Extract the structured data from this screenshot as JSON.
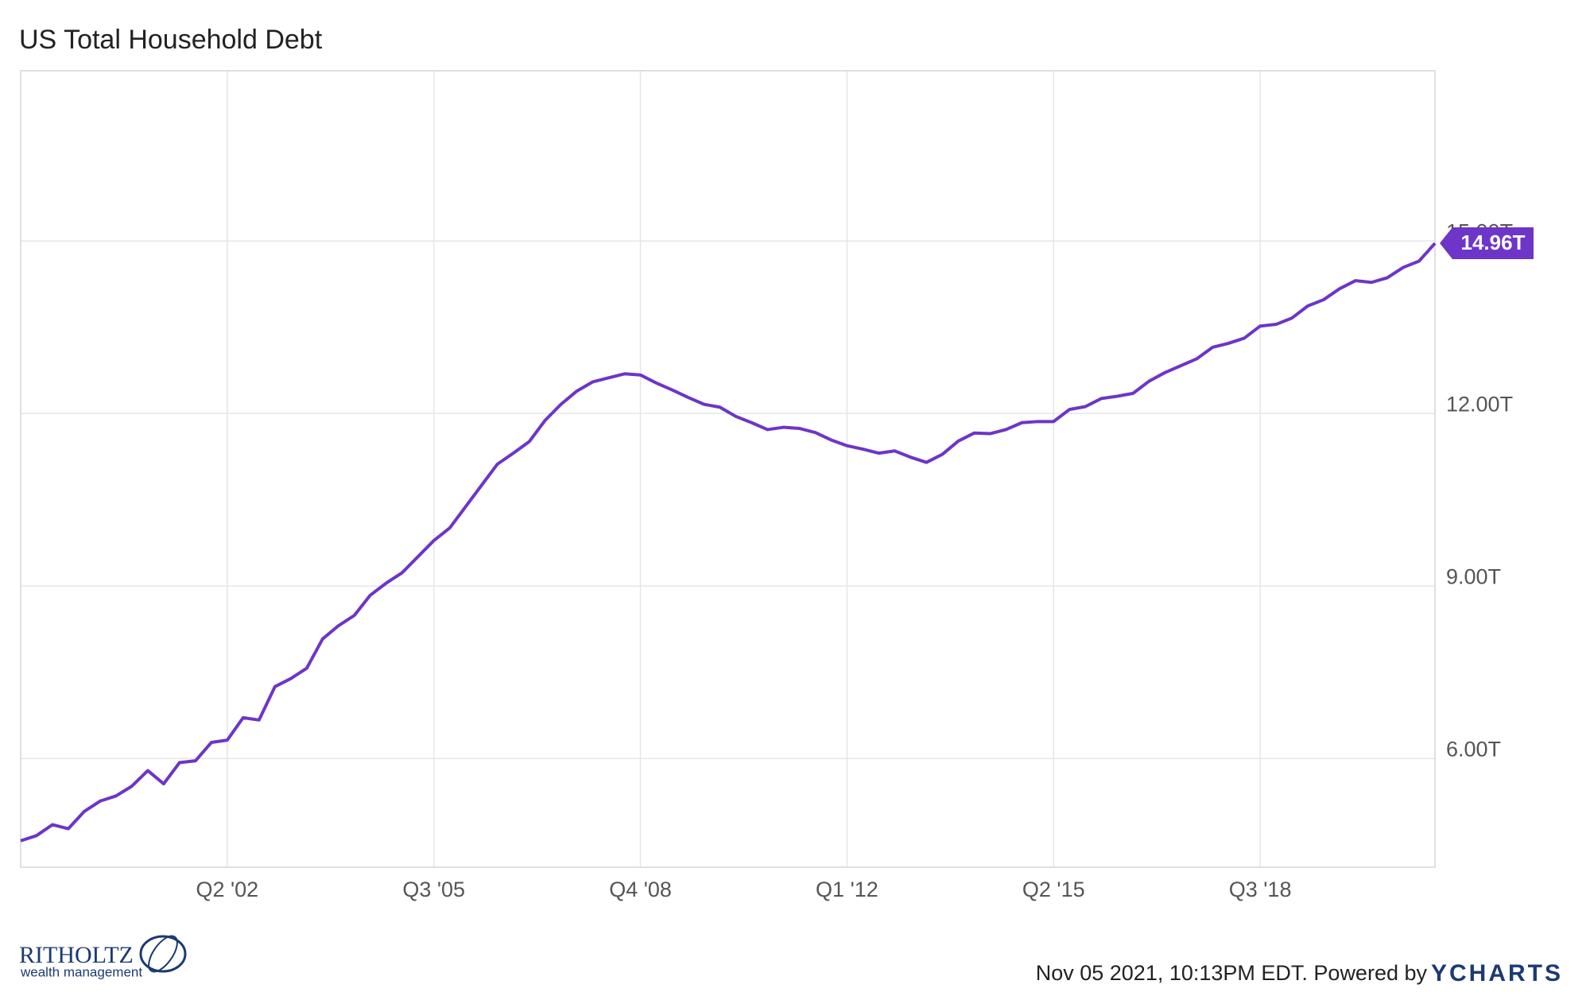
{
  "chart_data": {
    "type": "line",
    "title": "US Total Household Debt",
    "categories": [
      null,
      null,
      null,
      null,
      null,
      null,
      null,
      null,
      null,
      null,
      null,
      null,
      null,
      "Q2 '02",
      null,
      null,
      null,
      null,
      null,
      null,
      null,
      null,
      null,
      null,
      null,
      null,
      "Q3 '05",
      null,
      null,
      null,
      null,
      null,
      null,
      null,
      null,
      null,
      null,
      null,
      null,
      "Q4 '08",
      null,
      null,
      null,
      null,
      null,
      null,
      null,
      null,
      null,
      null,
      null,
      null,
      "Q1 '12",
      null,
      null,
      null,
      null,
      null,
      null,
      null,
      null,
      null,
      null,
      null,
      null,
      "Q2 '15",
      null,
      null,
      null,
      null,
      null,
      null,
      null,
      null,
      null,
      null,
      null,
      null,
      "Q3 '18",
      null,
      null,
      null,
      null,
      null,
      null,
      null,
      null,
      null,
      null,
      null
    ],
    "series": [
      {
        "name": "US Total Household Debt",
        "color": "#6d35c8",
        "values": [
          4.57,
          4.66,
          4.85,
          4.78,
          5.08,
          5.26,
          5.35,
          5.52,
          5.79,
          5.56,
          5.93,
          5.96,
          6.28,
          6.32,
          6.71,
          6.67,
          7.25,
          7.39,
          7.57,
          8.08,
          8.31,
          8.49,
          8.84,
          9.05,
          9.23,
          9.51,
          9.79,
          10.01,
          10.38,
          10.75,
          11.12,
          11.31,
          11.51,
          11.88,
          12.16,
          12.39,
          12.55,
          12.62,
          12.69,
          12.67,
          12.53,
          12.41,
          12.28,
          12.16,
          12.11,
          11.95,
          11.84,
          11.72,
          11.76,
          11.74,
          11.67,
          11.54,
          11.44,
          11.38,
          11.31,
          11.35,
          11.24,
          11.15,
          11.29,
          11.52,
          11.66,
          11.65,
          11.72,
          11.84,
          11.86,
          11.86,
          12.07,
          12.12,
          12.26,
          12.3,
          12.35,
          12.56,
          12.71,
          12.83,
          12.95,
          13.15,
          13.22,
          13.31,
          13.52,
          13.55,
          13.66,
          13.87,
          13.98,
          14.17,
          14.31,
          14.28,
          14.36,
          14.54,
          14.65,
          14.96
        ],
        "value_labels": [
          null,
          null,
          null,
          null,
          null,
          null,
          null,
          null,
          null,
          null,
          null,
          null,
          null,
          null,
          null,
          null,
          null,
          null,
          null,
          null,
          null,
          null,
          null,
          null,
          null,
          null,
          null,
          null,
          null,
          null,
          null,
          null,
          null,
          null,
          null,
          null,
          null,
          null,
          null,
          null,
          null,
          null,
          null,
          null,
          null,
          null,
          null,
          null,
          null,
          null,
          null,
          null,
          null,
          null,
          null,
          null,
          null,
          null,
          null,
          null,
          null,
          null,
          null,
          null,
          null,
          null,
          null,
          null,
          null,
          null,
          null,
          null,
          null,
          null,
          null,
          null,
          null,
          null,
          null,
          null,
          null,
          null,
          null,
          null,
          null,
          null,
          null,
          null,
          null,
          "14.96T"
        ]
      }
    ],
    "ylim": [
      4.11,
      17.96
    ],
    "yticks": [
      {
        "value": 6,
        "label": "6.00T"
      },
      {
        "value": 9,
        "label": "9.00T"
      },
      {
        "value": 12,
        "label": "12.00T"
      },
      {
        "value": 15,
        "label": "15.00T"
      }
    ],
    "grid": true,
    "footer": "Nov 05 2021, 10:13PM EDT. Powered by",
    "brand": "YCHARTS",
    "logo": {
      "name": "RITHOLTZ",
      "tagline": "wealth management"
    }
  }
}
